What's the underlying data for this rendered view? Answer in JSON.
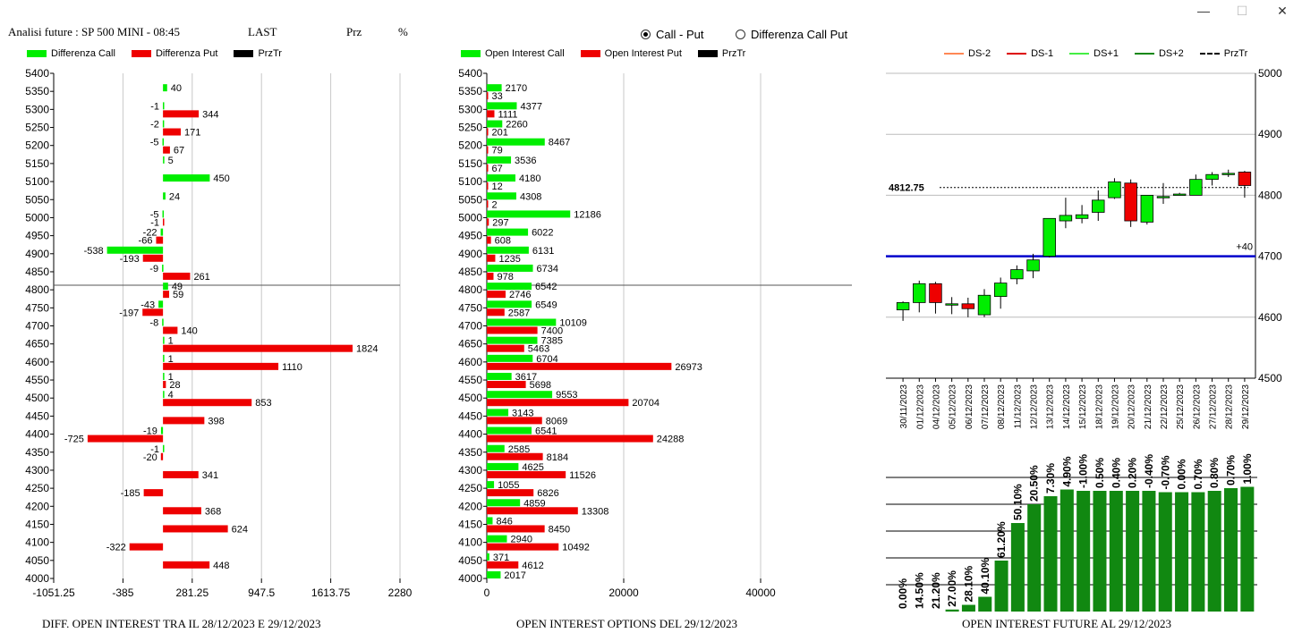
{
  "window": {
    "minimize": "—",
    "maximize": "☐",
    "close": "✕"
  },
  "header": {
    "title": "Analisi future : SP 500 MINI - 08:45",
    "last": "LAST",
    "prz": "Prz",
    "pct": "%"
  },
  "radio": {
    "call_put": "Call - Put",
    "diff_call_put": "Differenza Call Put",
    "selected": "call_put"
  },
  "colors": {
    "green": "#00ee00",
    "red": "#ee0000",
    "black": "#000000",
    "blue": "#0000cc",
    "darkgreen": "#118811"
  },
  "legend1": [
    {
      "label": "Differenza Call",
      "color": "#00ee00"
    },
    {
      "label": "Differenza Put",
      "color": "#ee0000"
    },
    {
      "label": "PrzTr",
      "color": "#000000"
    }
  ],
  "legend2": [
    {
      "label": "Open Interest Call",
      "color": "#00ee00"
    },
    {
      "label": "Open Interest Put",
      "color": "#ee0000"
    },
    {
      "label": "PrzTr",
      "color": "#000000"
    }
  ],
  "legend3": [
    {
      "label": "DS-2",
      "color": "#ff8855",
      "dash": false
    },
    {
      "label": "DS-1",
      "color": "#dd0000",
      "dash": false
    },
    {
      "label": "DS+1",
      "color": "#44ee44",
      "dash": false
    },
    {
      "label": "DS+2",
      "color": "#118811",
      "dash": false
    },
    {
      "label": "PrzTr",
      "color": "#000000",
      "dash": true
    }
  ],
  "footer": {
    "left": "DIFF. OPEN INTEREST TRA IL 28/12/2023 E 29/12/2023",
    "middle": "OPEN INTEREST OPTIONS DEL 29/12/2023",
    "right": "OPEN INTEREST FUTURE AL 29/12/2023"
  },
  "chart_data": [
    {
      "type": "bar",
      "orientation": "horizontal",
      "strikes": [
        5400,
        5350,
        5300,
        5250,
        5200,
        5150,
        5100,
        5050,
        5000,
        4950,
        4900,
        4850,
        4800,
        4750,
        4700,
        4650,
        4600,
        4550,
        4500,
        4450,
        4400,
        4350,
        4300,
        4250,
        4200,
        4150,
        4100,
        4050,
        4000
      ],
      "series": [
        {
          "name": "Differenza Call",
          "values": [
            null,
            40,
            -1,
            -2,
            -5,
            5,
            450,
            24,
            -5,
            -22,
            -538,
            -9,
            49,
            -43,
            -8,
            1,
            1,
            1,
            4,
            null,
            -19,
            -1,
            null,
            null,
            null,
            null,
            null,
            null,
            null
          ]
        },
        {
          "name": "Differenza Put",
          "values": [
            null,
            null,
            344,
            171,
            67,
            null,
            null,
            null,
            -1,
            -66,
            -193,
            261,
            59,
            -197,
            140,
            1824,
            1110,
            28,
            853,
            398,
            -725,
            -20,
            341,
            -185,
            368,
            624,
            -322,
            448,
            null
          ]
        }
      ],
      "xticks": [
        "-1051.25",
        "-385",
        "281.25",
        "947.5",
        "1613.75",
        "2280"
      ],
      "xlim": [
        -1051.25,
        2280
      ],
      "prz_tr": 4812.75
    },
    {
      "type": "bar",
      "orientation": "horizontal",
      "strikes": [
        5400,
        5350,
        5300,
        5250,
        5200,
        5150,
        5100,
        5050,
        5000,
        4950,
        4900,
        4850,
        4800,
        4750,
        4700,
        4650,
        4600,
        4550,
        4500,
        4450,
        4400,
        4350,
        4300,
        4250,
        4200,
        4150,
        4100,
        4050,
        4000
      ],
      "series": [
        {
          "name": "Open Interest Call",
          "values": [
            null,
            2170,
            4377,
            2260,
            8467,
            3536,
            4180,
            4308,
            12186,
            6022,
            6131,
            6734,
            6542,
            6549,
            10109,
            7385,
            6704,
            3617,
            9553,
            3143,
            6541,
            2585,
            4625,
            1055,
            4859,
            846,
            2940,
            371,
            2017
          ]
        },
        {
          "name": "Open Interest Put",
          "values": [
            null,
            33,
            1111,
            201,
            79,
            67,
            12,
            2,
            297,
            608,
            1235,
            978,
            2746,
            2587,
            7400,
            5463,
            26973,
            5698,
            20704,
            8069,
            24288,
            8184,
            11526,
            6826,
            13308,
            8450,
            10492,
            4612,
            null
          ]
        }
      ],
      "xticks": [
        "0",
        "20000",
        "40000"
      ],
      "xlim": [
        0,
        40000
      ],
      "prz_tr": 4812.75
    },
    {
      "type": "candlestick",
      "dates": [
        "30/11/2023",
        "01/12/2023",
        "04/12/2023",
        "05/12/2023",
        "06/12/2023",
        "07/12/2023",
        "08/12/2023",
        "11/12/2023",
        "12/12/2023",
        "13/12/2023",
        "14/12/2023",
        "15/12/2023",
        "18/12/2023",
        "19/12/2023",
        "20/12/2023",
        "21/12/2023",
        "22/12/2023",
        "25/12/2023",
        "26/12/2023",
        "27/12/2023",
        "28/12/2023",
        "29/12/2023"
      ],
      "ohlc": [
        [
          4612,
          4626,
          4594,
          4624
        ],
        [
          4624,
          4660,
          4608,
          4655
        ],
        [
          4655,
          4658,
          4606,
          4624
        ],
        [
          4622,
          4633,
          4605,
          4622
        ],
        [
          4622,
          4632,
          4600,
          4614
        ],
        [
          4604,
          4646,
          4600,
          4636
        ],
        [
          4634,
          4665,
          4614,
          4656
        ],
        [
          4663,
          4685,
          4654,
          4678
        ],
        [
          4676,
          4704,
          4664,
          4694
        ],
        [
          4700,
          4762,
          4698,
          4762
        ],
        [
          4758,
          4796,
          4746,
          4767
        ],
        [
          4762,
          4784,
          4754,
          4768
        ],
        [
          4772,
          4808,
          4758,
          4792
        ],
        [
          4796,
          4828,
          4794,
          4822
        ],
        [
          4820,
          4826,
          4748,
          4758
        ],
        [
          4756,
          4800,
          4752,
          4800
        ],
        [
          4796,
          4820,
          4786,
          4798
        ],
        [
          4802,
          4804,
          4800,
          4802
        ],
        [
          4800,
          4834,
          4800,
          4826
        ],
        [
          4826,
          4838,
          4816,
          4834
        ],
        [
          4834,
          4842,
          4830,
          4836
        ],
        [
          4838,
          4840,
          4796,
          4816
        ]
      ],
      "yticks": [
        "5000",
        "4900",
        "4800",
        "4700",
        "4600",
        "4500"
      ],
      "ylim": [
        4500,
        5000
      ],
      "prz_tr": 4812.75,
      "prz_tr_label": "4812.75",
      "level": 4700,
      "level_label": "+40"
    },
    {
      "type": "bar",
      "percent_labels": [
        "0.00%",
        "14.50%",
        "21.20%",
        "27.00%",
        "28.10%",
        "40.10%",
        "61.20%",
        "50.10%",
        "20.50%",
        "7.30%",
        "4.90%",
        "-1.00%",
        "0.50%",
        "0.40%",
        "0.20%",
        "-0.40%",
        "-0.70%",
        "0.00%",
        "0.70%",
        "0.80%",
        "0.70%",
        "1.00%"
      ],
      "relative_heights": [
        0.0,
        0.0,
        0.0,
        0.015,
        0.05,
        0.11,
        0.38,
        0.66,
        0.8,
        0.86,
        0.91,
        0.9,
        0.9,
        0.9,
        0.9,
        0.9,
        0.89,
        0.89,
        0.89,
        0.9,
        0.92,
        0.93
      ]
    }
  ]
}
